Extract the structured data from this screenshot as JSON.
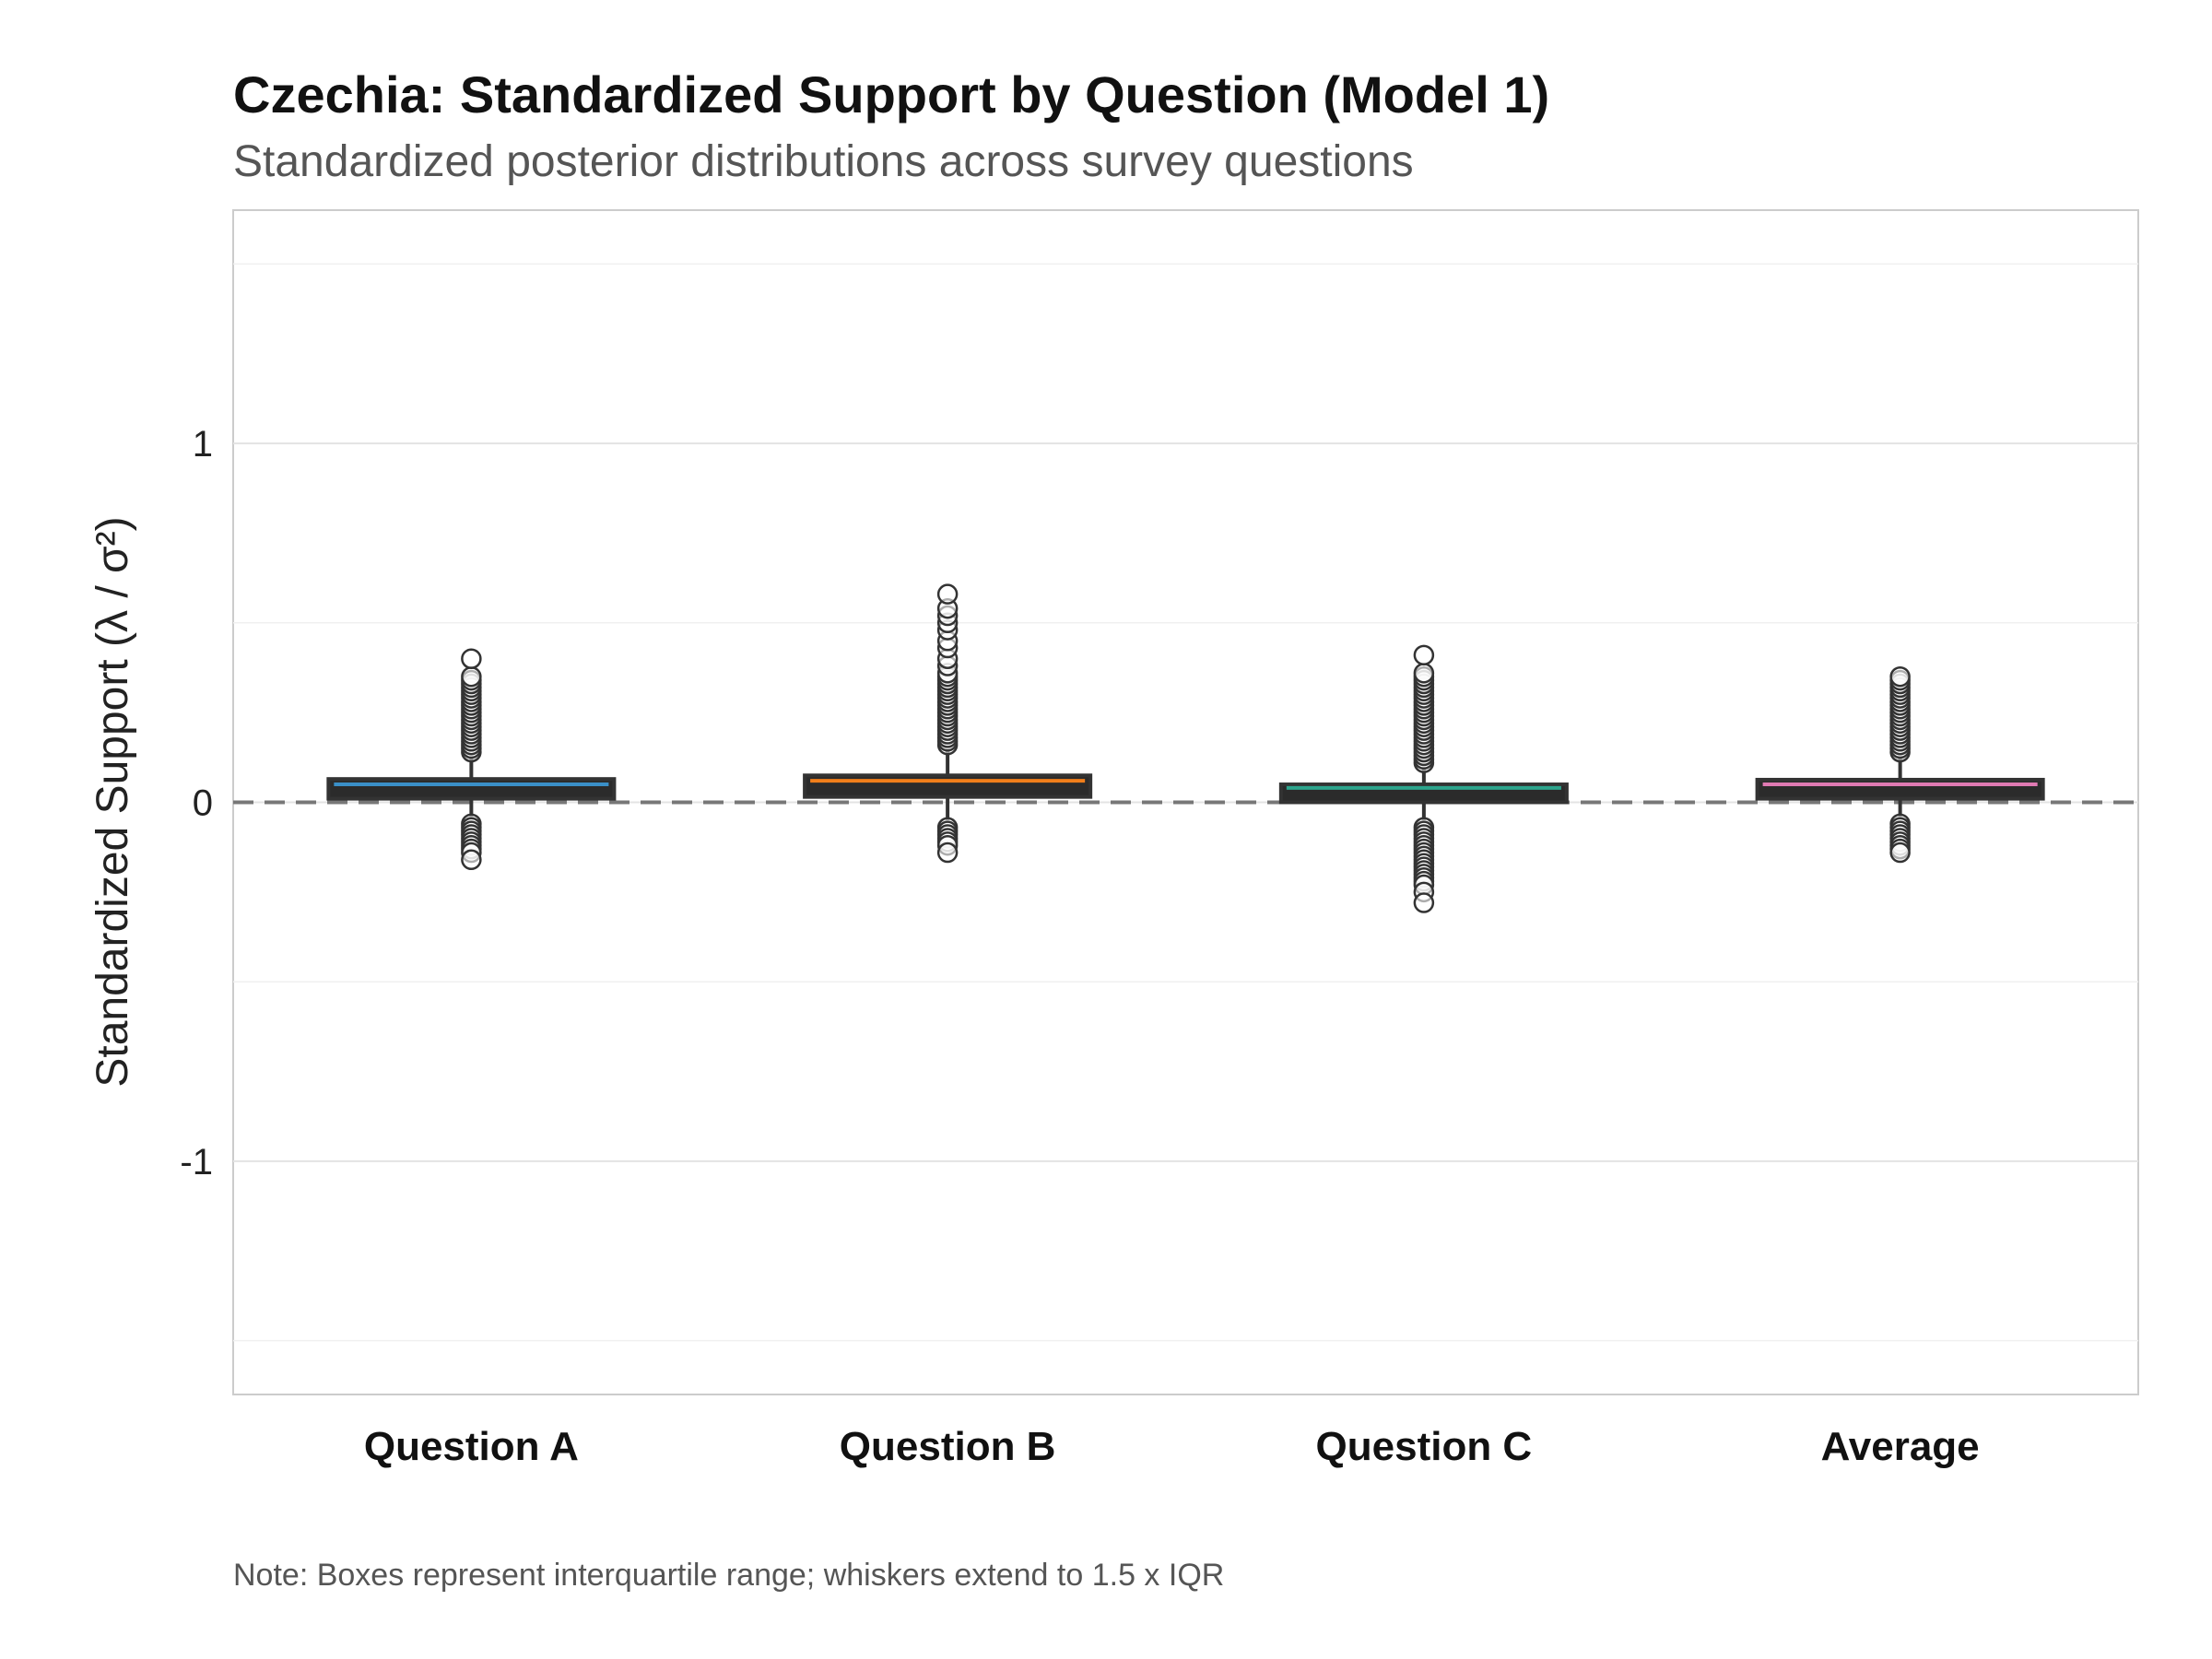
{
  "chart_data": {
    "type": "box",
    "title": "Czechia: Standardized Support by Question (Model 1)",
    "subtitle": "Standardized posterior distributions across survey questions",
    "ylabel": "Standardized Support (λ / σ²)",
    "xlabel": "",
    "ylim": [
      -1.65,
      1.65
    ],
    "yticks": [
      -1,
      0,
      1
    ],
    "ytick_labels": [
      "-1",
      "0",
      "1"
    ],
    "reference_line": 0,
    "grid": true,
    "note": "Note: Boxes represent interquartile range; whiskers extend to 1.5 x IQR",
    "categories": [
      "Question A",
      "Question B",
      "Question C",
      "Average"
    ],
    "series": [
      {
        "category": "Question A",
        "q1": 0.01,
        "median": 0.05,
        "q3": 0.065,
        "whisker_low": -0.04,
        "whisker_high": 0.13,
        "color": "#3a8fc7",
        "outliers_high": [
          0.14,
          0.15,
          0.16,
          0.17,
          0.18,
          0.19,
          0.2,
          0.21,
          0.22,
          0.23,
          0.24,
          0.25,
          0.26,
          0.27,
          0.28,
          0.29,
          0.3,
          0.31,
          0.32,
          0.33,
          0.34,
          0.35,
          0.4
        ],
        "outliers_low": [
          -0.06,
          -0.07,
          -0.08,
          -0.09,
          -0.1,
          -0.11,
          -0.12,
          -0.13,
          -0.14,
          -0.16
        ]
      },
      {
        "category": "Question B",
        "q1": 0.015,
        "median": 0.06,
        "q3": 0.075,
        "whisker_low": -0.05,
        "whisker_high": 0.15,
        "color": "#f07e1b",
        "outliers_high": [
          0.16,
          0.17,
          0.18,
          0.19,
          0.2,
          0.21,
          0.22,
          0.23,
          0.24,
          0.25,
          0.26,
          0.27,
          0.28,
          0.29,
          0.3,
          0.31,
          0.32,
          0.33,
          0.34,
          0.35,
          0.36,
          0.38,
          0.4,
          0.43,
          0.45,
          0.48,
          0.5,
          0.52,
          0.54,
          0.58
        ],
        "outliers_low": [
          -0.07,
          -0.08,
          -0.09,
          -0.1,
          -0.11,
          -0.12,
          -0.14
        ]
      },
      {
        "category": "Question C",
        "q1": 0.0,
        "median": 0.04,
        "q3": 0.05,
        "whisker_low": -0.05,
        "whisker_high": 0.1,
        "color": "#2ca58d",
        "outliers_high": [
          0.11,
          0.12,
          0.13,
          0.14,
          0.15,
          0.16,
          0.17,
          0.18,
          0.19,
          0.2,
          0.21,
          0.22,
          0.23,
          0.24,
          0.25,
          0.26,
          0.27,
          0.28,
          0.29,
          0.3,
          0.31,
          0.32,
          0.33,
          0.34,
          0.35,
          0.36,
          0.41
        ],
        "outliers_low": [
          -0.07,
          -0.08,
          -0.09,
          -0.1,
          -0.11,
          -0.12,
          -0.13,
          -0.14,
          -0.15,
          -0.16,
          -0.17,
          -0.18,
          -0.19,
          -0.2,
          -0.21,
          -0.22,
          -0.23,
          -0.25,
          -0.28
        ]
      },
      {
        "category": "Average",
        "q1": 0.01,
        "median": 0.05,
        "q3": 0.063,
        "whisker_low": -0.04,
        "whisker_high": 0.13,
        "color": "#e07ab3",
        "outliers_high": [
          0.14,
          0.15,
          0.16,
          0.17,
          0.18,
          0.19,
          0.2,
          0.21,
          0.22,
          0.23,
          0.24,
          0.25,
          0.26,
          0.27,
          0.28,
          0.29,
          0.3,
          0.31,
          0.32,
          0.33,
          0.34,
          0.35
        ],
        "outliers_low": [
          -0.06,
          -0.07,
          -0.08,
          -0.09,
          -0.1,
          -0.11,
          -0.12,
          -0.13,
          -0.14
        ]
      }
    ]
  }
}
